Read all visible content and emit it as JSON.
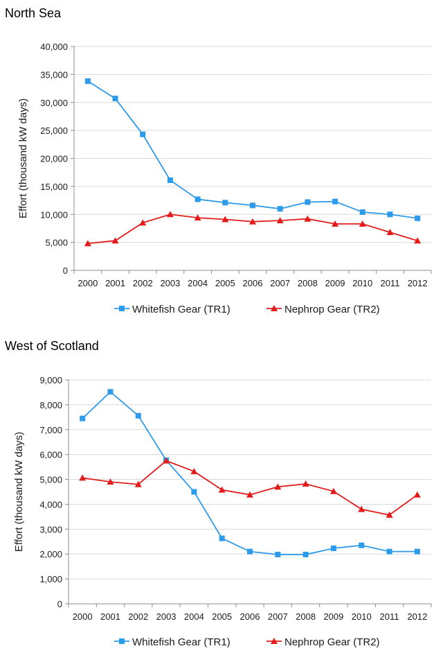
{
  "chart_data": [
    {
      "type": "line",
      "title": "North Sea",
      "ylabel": "Effort (thousand kW days)",
      "xlabel": "",
      "categories": [
        "2000",
        "2001",
        "2002",
        "2003",
        "2004",
        "2005",
        "2006",
        "2007",
        "2008",
        "2009",
        "2010",
        "2011",
        "2012"
      ],
      "ylim": [
        0,
        40000
      ],
      "yticks": [
        0,
        5000,
        10000,
        15000,
        20000,
        25000,
        30000,
        35000,
        40000
      ],
      "ytick_labels": [
        "0",
        "5,000",
        "10,000",
        "15,000",
        "20,000",
        "25,000",
        "30,000",
        "35,000",
        "40,000"
      ],
      "grid": true,
      "legend": "bottom",
      "series": [
        {
          "name": "Whitefish Gear (TR1)",
          "color": "#2E9AEA",
          "marker": "square",
          "values": [
            33800,
            30700,
            24300,
            16100,
            12700,
            12100,
            11600,
            11000,
            12200,
            12300,
            10400,
            10000,
            9300
          ]
        },
        {
          "name": "Nephrop Gear (TR2)",
          "color": "#E31B1B",
          "marker": "triangle",
          "values": [
            4800,
            5300,
            8500,
            10000,
            9400,
            9100,
            8700,
            8900,
            9200,
            8300,
            8300,
            6800,
            5300
          ]
        }
      ]
    },
    {
      "type": "line",
      "title": "West of Scotland",
      "ylabel": "Effort (thousand kW days)",
      "xlabel": "",
      "categories": [
        "2000",
        "2001",
        "2002",
        "2003",
        "2004",
        "2005",
        "2006",
        "2007",
        "2008",
        "2009",
        "2010",
        "2011",
        "2012"
      ],
      "ylim": [
        0,
        9000
      ],
      "yticks": [
        0,
        1000,
        2000,
        3000,
        4000,
        5000,
        6000,
        7000,
        8000,
        9000
      ],
      "ytick_labels": [
        "0",
        "1,000",
        "2,000",
        "3,000",
        "4,000",
        "5,000",
        "6,000",
        "7,000",
        "8,000",
        "9,000"
      ],
      "grid": true,
      "legend": "bottom",
      "series": [
        {
          "name": "Whitefish Gear (TR1)",
          "color": "#2E9AEA",
          "marker": "square",
          "values": [
            7450,
            8520,
            7560,
            5770,
            4500,
            2630,
            2100,
            1980,
            1980,
            2230,
            2350,
            2100,
            2100
          ]
        },
        {
          "name": "Nephrop Gear (TR2)",
          "color": "#E31B1B",
          "marker": "triangle",
          "values": [
            5060,
            4900,
            4800,
            5750,
            5320,
            4580,
            4380,
            4700,
            4820,
            4520,
            3800,
            3570,
            4380
          ]
        }
      ]
    }
  ]
}
